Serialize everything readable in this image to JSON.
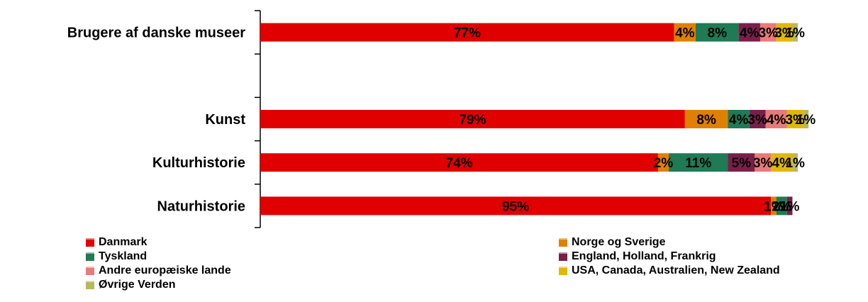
{
  "chart_data": {
    "type": "bar",
    "stacked": true,
    "orientation": "horizontal",
    "categories": [
      "Brugere af danske museer",
      "",
      "Kunst",
      "Kulturhistorie",
      "Naturhistorie"
    ],
    "series": [
      {
        "name": "Danmark",
        "color": "#e00000",
        "values": [
          77,
          null,
          79,
          74,
          95
        ]
      },
      {
        "name": "Norge og Sverige",
        "color": "#e08000",
        "values": [
          4,
          null,
          8,
          2,
          1
        ]
      },
      {
        "name": "Tyskland",
        "color": "#1f7a55",
        "values": [
          8,
          null,
          4,
          11,
          2
        ]
      },
      {
        "name": "England, Holland, Frankrig",
        "color": "#7a1f4a",
        "values": [
          4,
          null,
          3,
          5,
          1
        ]
      },
      {
        "name": "Andre europæiske lande",
        "color": "#e87a7a",
        "values": [
          3,
          null,
          4,
          3,
          0
        ]
      },
      {
        "name": "USA, Canada, Australien, New Zealand",
        "color": "#e0b800",
        "values": [
          3,
          null,
          3,
          4,
          0
        ]
      },
      {
        "name": "Øvrige Verden",
        "color": "#b8b860",
        "values": [
          1,
          null,
          1,
          1,
          0
        ]
      }
    ],
    "xlim": [
      0,
      100
    ],
    "legend_position": "bottom"
  }
}
